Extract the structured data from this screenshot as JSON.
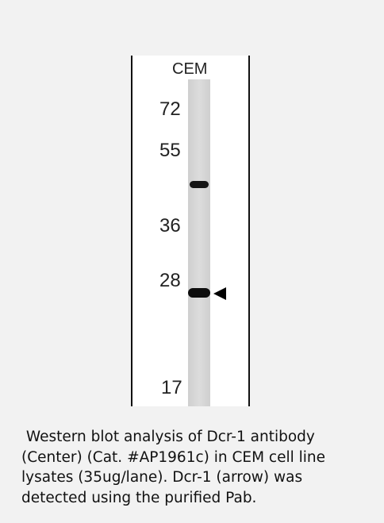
{
  "blot": {
    "lane_label": "CEM",
    "markers": [
      "72",
      "55",
      "36",
      "28",
      "17"
    ]
  },
  "caption": {
    "lines": [
      " Western blot analysis of Dcr-1 antibody",
      "(Center) (Cat. #AP1961c) in CEM cell line",
      "lysates (35ug/lane). Dcr-1 (arrow) was",
      "detected using the purified Pab."
    ]
  }
}
